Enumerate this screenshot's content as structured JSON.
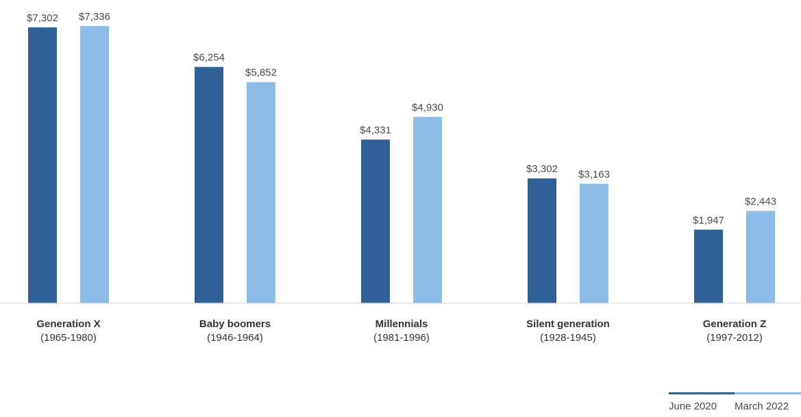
{
  "chart_data": {
    "type": "bar",
    "categories": [
      {
        "name": "Generation X",
        "years": "(1965-1980)"
      },
      {
        "name": "Baby boomers",
        "years": "(1946-1964)"
      },
      {
        "name": "Millennials",
        "years": "(1981-1996)"
      },
      {
        "name": "Silent generation",
        "years": "(1928-1945)"
      },
      {
        "name": "Generation Z",
        "years": "(1997-2012)"
      }
    ],
    "series": [
      {
        "name": "June 2020",
        "color": "#306196",
        "values": [
          7302,
          6254,
          4331,
          3302,
          1947
        ],
        "labels": [
          "$7,302",
          "$6,254",
          "$4,331",
          "$3,302",
          "$1,947"
        ]
      },
      {
        "name": "March 2022",
        "color": "#8dbde6",
        "values": [
          7336,
          5852,
          4930,
          3163,
          2443
        ],
        "labels": [
          "$7,336",
          "$5,852",
          "$4,930",
          "$3,163",
          "$2,443"
        ]
      }
    ],
    "ylim": [
      0,
      7336
    ],
    "grid": false,
    "legend_position": "bottom-right"
  }
}
